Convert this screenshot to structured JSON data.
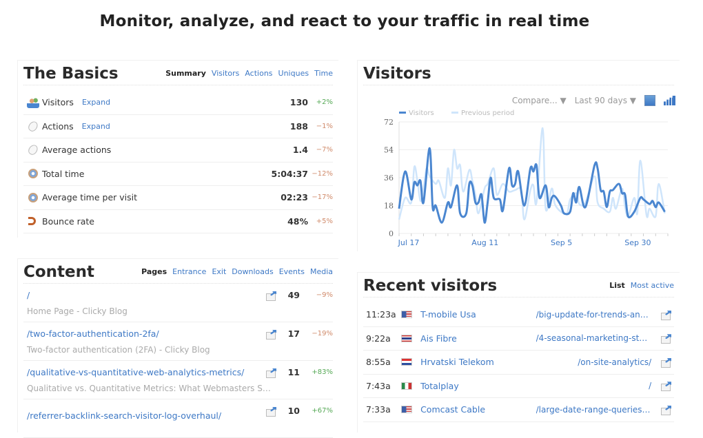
{
  "hero": "Monitor, analyze, and react to your traffic in real time",
  "basics": {
    "title": "The Basics",
    "tabs": [
      "Summary",
      "Visitors",
      "Actions",
      "Uniques",
      "Time"
    ],
    "rows": [
      {
        "icon": "visitors-icon",
        "label": "Visitors",
        "expand": "Expand",
        "value": "130",
        "change": "+2%",
        "trend": "pos"
      },
      {
        "icon": "mouse-icon",
        "label": "Actions",
        "expand": "Expand",
        "value": "188",
        "change": "−1%",
        "trend": "neg"
      },
      {
        "icon": "mouse-icon",
        "label": "Average actions",
        "value": "1.4",
        "change": "−7%",
        "trend": "neg"
      },
      {
        "icon": "clock-icon",
        "label": "Total time",
        "value": "5:04:37",
        "change": "−12%",
        "trend": "neg"
      },
      {
        "icon": "clock-icon",
        "label": "Average time per visit",
        "value": "02:23",
        "change": "−17%",
        "trend": "neg"
      },
      {
        "icon": "bounce-icon",
        "label": "Bounce rate",
        "value": "48%",
        "change": "+5%",
        "trend": "neg"
      }
    ]
  },
  "content": {
    "title": "Content",
    "tabs": [
      "Pages",
      "Entrance",
      "Exit",
      "Downloads",
      "Events",
      "Media"
    ],
    "rows": [
      {
        "path": "/",
        "title": "Home Page - Clicky Blog",
        "value": "49",
        "change": "−9%",
        "trend": "neg"
      },
      {
        "path": "/two-factor-authentication-2fa/",
        "title": "Two-factor authentication (2FA) - Clicky Blog",
        "value": "17",
        "change": "−19%",
        "trend": "neg"
      },
      {
        "path": "/qualitative-vs-quantitative-web-analytics-metrics/",
        "title": "Qualitative vs. Quantitative Metrics: What Webmasters Should…",
        "value": "11",
        "change": "+83%",
        "trend": "pos"
      },
      {
        "path": "/referrer-backlink-search-visitor-log-overhaul/",
        "title": "",
        "value": "10",
        "change": "+67%",
        "trend": "pos"
      }
    ]
  },
  "visitors": {
    "title": "Visitors",
    "compare": "Compare... ▼",
    "range": "Last 90 days ▼"
  },
  "recent": {
    "title": "Recent visitors",
    "tabs": [
      "List",
      "Most active"
    ],
    "rows": [
      {
        "time": "11:23a",
        "flag": "us",
        "isp": "T-mobile Usa",
        "path": "/big-update-for-trends-and-…"
      },
      {
        "time": "9:22a",
        "flag": "th",
        "isp": "Ais Fibre",
        "path": "/4-seasonal-marketing-stats…"
      },
      {
        "time": "8:55a",
        "flag": "hr",
        "isp": "Hrvatski Telekom",
        "path": "/on-site-analytics/"
      },
      {
        "time": "7:43a",
        "flag": "mx",
        "isp": "Totalplay",
        "path": "/"
      },
      {
        "time": "7:33a",
        "flag": "us",
        "isp": "Comcast Cable",
        "path": "/large-date-range-queries-n…"
      }
    ]
  },
  "chart_data": {
    "type": "line",
    "ylim": [
      0,
      72
    ],
    "yticks": [
      0,
      18,
      36,
      54,
      72
    ],
    "xlim": [
      "Jul 17",
      "Oct 13"
    ],
    "xticks": [
      "Jul 17",
      "Aug 11",
      "Sep 5",
      "Sep 30"
    ],
    "grid": true,
    "legend": "top-left",
    "series": [
      {
        "name": "Visitors",
        "color": "#4a86d0",
        "points": [
          [
            "Jul 17",
            16
          ],
          [
            "Jul 19",
            40
          ],
          [
            "Jul 21",
            22
          ],
          [
            "Jul 22",
            33
          ],
          [
            "Jul 23",
            31
          ],
          [
            "Jul 24",
            34
          ],
          [
            "Jul 25",
            20
          ],
          [
            "Jul 27",
            55
          ],
          [
            "Jul 28",
            17
          ],
          [
            "Jul 29",
            18
          ],
          [
            "Jul 31",
            7
          ],
          [
            "Aug 2",
            20
          ],
          [
            "Aug 3",
            17
          ],
          [
            "Aug 5",
            31
          ],
          [
            "Aug 6",
            13
          ],
          [
            "Aug 8",
            13
          ],
          [
            "Aug 9",
            32
          ],
          [
            "Aug 10",
            31
          ],
          [
            "Aug 11",
            20
          ],
          [
            "Aug 12",
            20
          ],
          [
            "Aug 13",
            25
          ],
          [
            "Aug 14",
            7
          ],
          [
            "Aug 15",
            20
          ],
          [
            "Aug 16",
            36
          ],
          [
            "Aug 17",
            23
          ],
          [
            "Aug 19",
            22
          ],
          [
            "Aug 20",
            15
          ],
          [
            "Aug 22",
            42
          ],
          [
            "Aug 23",
            31
          ],
          [
            "Aug 24",
            32
          ],
          [
            "Aug 25",
            40
          ],
          [
            "Aug 27",
            18
          ],
          [
            "Aug 29",
            42
          ],
          [
            "Aug 30",
            40
          ],
          [
            "Aug 31",
            44
          ],
          [
            "Sep 1",
            23
          ],
          [
            "Sep 3",
            31
          ],
          [
            "Sep 4",
            17
          ],
          [
            "Sep 5",
            23
          ],
          [
            "Sep 6",
            24
          ],
          [
            "Sep 8",
            18
          ],
          [
            "Sep 9",
            13
          ],
          [
            "Sep 11",
            14
          ],
          [
            "Sep 12",
            26
          ],
          [
            "Sep 13",
            20
          ],
          [
            "Sep 14",
            30
          ],
          [
            "Sep 16",
            17
          ],
          [
            "Sep 19",
            44
          ],
          [
            "Sep 20",
            42
          ],
          [
            "Sep 21",
            28
          ],
          [
            "Sep 22",
            27
          ],
          [
            "Sep 23",
            17
          ],
          [
            "Sep 24",
            27
          ],
          [
            "Sep 25",
            28
          ],
          [
            "Sep 27",
            32
          ],
          [
            "Sep 28",
            26
          ],
          [
            "Sep 29",
            25
          ],
          [
            "Sep 30",
            11
          ],
          [
            "Oct 2",
            14
          ],
          [
            "Oct 4",
            23
          ],
          [
            "Oct 5",
            22
          ],
          [
            "Oct 7",
            19
          ],
          [
            "Oct 8",
            21
          ],
          [
            "Oct 9",
            17
          ],
          [
            "Oct 10",
            20
          ],
          [
            "Oct 12",
            14
          ]
        ]
      },
      {
        "name": "Previous period",
        "color": "#cfe5fb",
        "points": [
          [
            "Jul 17",
            9
          ],
          [
            "Jul 19",
            23
          ],
          [
            "Jul 21",
            20
          ],
          [
            "Jul 22",
            43
          ],
          [
            "Jul 23",
            34
          ],
          [
            "Jul 24",
            21
          ],
          [
            "Jul 25",
            29
          ],
          [
            "Jul 26",
            42
          ],
          [
            "Jul 27",
            37
          ],
          [
            "Jul 29",
            32
          ],
          [
            "Jul 30",
            34
          ],
          [
            "Aug 1",
            23
          ],
          [
            "Aug 2",
            42
          ],
          [
            "Aug 3",
            31
          ],
          [
            "Aug 4",
            54
          ],
          [
            "Aug 5",
            42
          ],
          [
            "Aug 6",
            44
          ],
          [
            "Aug 7",
            27
          ],
          [
            "Aug 9",
            41
          ],
          [
            "Aug 10",
            34
          ],
          [
            "Aug 11",
            25
          ],
          [
            "Aug 12",
            13
          ],
          [
            "Aug 14",
            29
          ],
          [
            "Aug 15",
            32
          ],
          [
            "Aug 17",
            42
          ],
          [
            "Aug 18",
            25
          ],
          [
            "Aug 20",
            32
          ],
          [
            "Aug 22",
            27
          ],
          [
            "Aug 24",
            28
          ],
          [
            "Aug 26",
            28
          ],
          [
            "Aug 27",
            9
          ],
          [
            "Aug 29",
            28
          ],
          [
            "Aug 30",
            31
          ],
          [
            "Aug 31",
            20
          ],
          [
            "Sep 2",
            68
          ],
          [
            "Sep 3",
            16
          ],
          [
            "Sep 5",
            29
          ],
          [
            "Sep 6",
            19
          ],
          [
            "Sep 8",
            14
          ],
          [
            "Sep 10",
            13
          ],
          [
            "Sep 11",
            22
          ],
          [
            "Sep 13",
            26
          ],
          [
            "Sep 14",
            19
          ],
          [
            "Sep 16",
            20
          ],
          [
            "Sep 19",
            37
          ],
          [
            "Sep 20",
            20
          ],
          [
            "Sep 22",
            16
          ],
          [
            "Sep 24",
            14
          ],
          [
            "Sep 25",
            23
          ],
          [
            "Sep 26",
            16
          ],
          [
            "Sep 28",
            29
          ],
          [
            "Sep 29",
            17
          ],
          [
            "Sep 30",
            11
          ],
          [
            "Oct 2",
            23
          ],
          [
            "Oct 3",
            13
          ],
          [
            "Oct 4",
            47
          ],
          [
            "Oct 6",
            12
          ],
          [
            "Oct 7",
            16
          ],
          [
            "Oct 9",
            11
          ],
          [
            "Oct 10",
            32
          ],
          [
            "Oct 12",
            13
          ]
        ]
      }
    ]
  }
}
